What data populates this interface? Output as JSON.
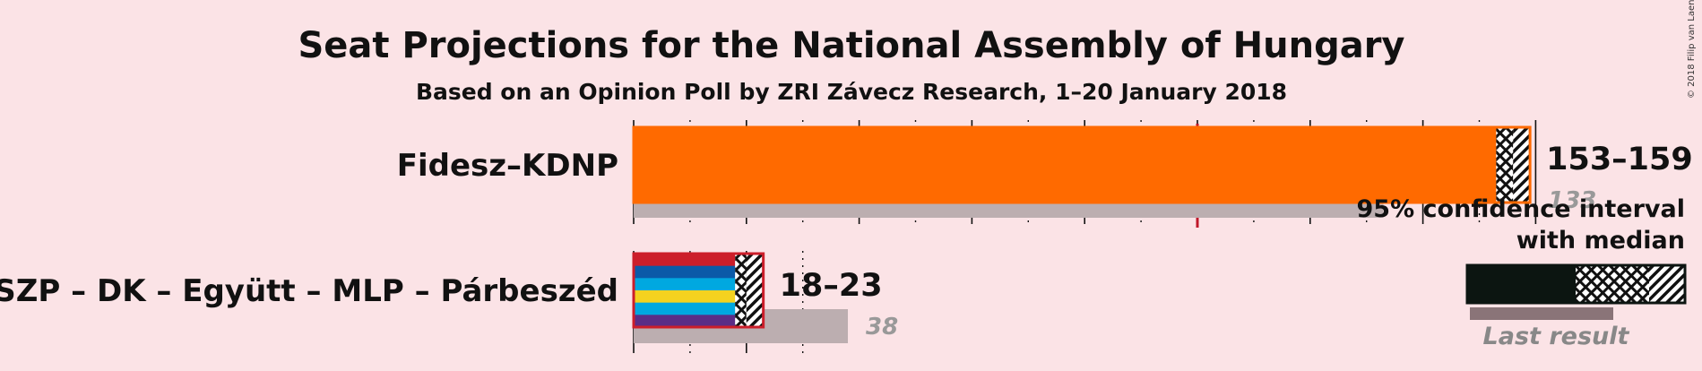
{
  "title": "Seat Projections for the National Assembly of Hungary",
  "subtitle": "Based on an Opinion Poll by ZRI Závecz Research, 1–20 January 2018",
  "copyright": "© 2018 Filip van Laenen",
  "chart_data": {
    "type": "bar",
    "orientation": "horizontal",
    "majority_seats": 100,
    "axis_max": 160,
    "grid": true,
    "categories": [
      "Fidesz–KDNP",
      "MSZP – DK – Együtt – MLP – Párbeszéd"
    ],
    "series": [
      {
        "party": "Fidesz–KDNP",
        "ci_low": 153,
        "ci_high": 159,
        "median": 156,
        "last_result": 133,
        "range_label": "153–159",
        "last_label": "133",
        "colors": [
          "#ff6a00"
        ]
      },
      {
        "party": "MSZP – DK – Együtt – MLP – Párbeszéd",
        "ci_low": 18,
        "ci_high": 23,
        "median": 20,
        "last_result": 38,
        "range_label": "18–23",
        "last_label": "38",
        "colors": [
          "#cc1e2a",
          "#0b5aa8",
          "#00a8e0",
          "#f4d21f",
          "#00a8e0",
          "#5b2d86"
        ]
      }
    ],
    "legend": {
      "line1": "95% confidence interval",
      "line2": "with median",
      "last": "Last result",
      "position": "right"
    }
  }
}
